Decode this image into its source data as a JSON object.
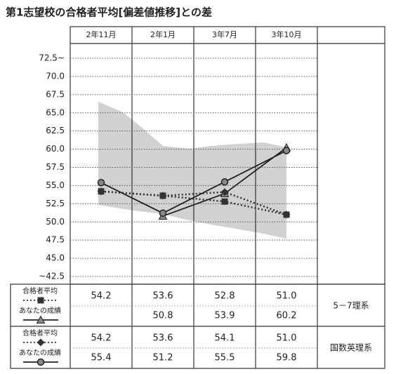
{
  "chart_data": {
    "type": "line",
    "title": "第1志望校の合格者平均[偏差値推移]との差",
    "categories": [
      "2年11月",
      "2年1月",
      "3年7月",
      "3年10月"
    ],
    "ylim": [
      42.5,
      72.5
    ],
    "yticks": [
      {
        "value": 72.5,
        "label": "72.5~"
      },
      {
        "value": 70,
        "label": "70.0"
      },
      67.5,
      {
        "value": 65,
        "label": "65.0"
      },
      62.5,
      {
        "value": 60,
        "label": "60.0"
      },
      57.5,
      {
        "value": 55,
        "label": "55.0"
      },
      52.5,
      {
        "value": 50,
        "label": "50.0"
      },
      47.5,
      {
        "value": 45,
        "label": "45.0"
      },
      {
        "value": 42.5,
        "label": "~42.5"
      }
    ],
    "grid": true,
    "groups": [
      {
        "name": "5－7理系",
        "series": [
          {
            "name": "合格者平均",
            "color": "#333333",
            "dash": "dotted",
            "marker": "square",
            "values": [
              54.2,
              53.6,
              52.8,
              51.0
            ],
            "value_labels": [
              "54.2",
              "53.6",
              "52.8",
              "51.0"
            ]
          },
          {
            "name": "あなたの成績",
            "color": "#222222",
            "dash": "solid",
            "marker": "triangle",
            "values": [
              null,
              50.8,
              53.9,
              60.2
            ],
            "value_labels": [
              null,
              "50.8",
              "53.9",
              "60.2"
            ]
          }
        ]
      },
      {
        "name": "国数英理系",
        "series": [
          {
            "name": "合格者平均",
            "color": "#333333",
            "dash": "dotted",
            "marker": "diamond",
            "values": [
              54.2,
              53.6,
              54.1,
              51.0
            ],
            "value_labels": [
              "54.2",
              "53.6",
              "54.1",
              "51.0"
            ]
          },
          {
            "name": "あなたの成績",
            "color": "#222222",
            "dash": "solid",
            "marker": "circle",
            "values": [
              55.4,
              51.2,
              55.5,
              59.8
            ],
            "value_labels": [
              "55.4",
              "51.2",
              "55.5",
              "59.8"
            ]
          }
        ]
      }
    ]
  }
}
